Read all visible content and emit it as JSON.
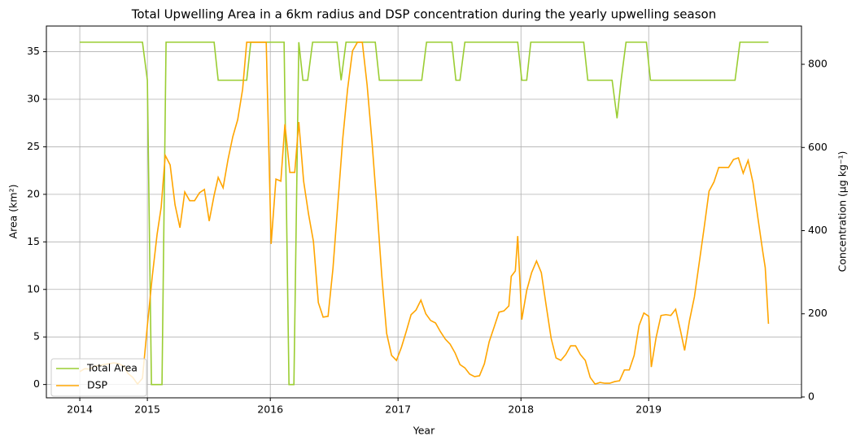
{
  "chart_data": {
    "type": "line",
    "title": "Total Upwelling Area in a 6km radius and DSP concentration during the yearly upwelling season",
    "xlabel": "Year",
    "ylabel": "Area (km²)",
    "y2label": "Concentration (µg kg⁻¹)",
    "xlim": [
      -3.2,
      69.1
    ],
    "xticks": [
      {
        "value": 0,
        "label": "2014"
      },
      {
        "value": 6.47,
        "label": "2015"
      },
      {
        "value": 18.24,
        "label": "2016"
      },
      {
        "value": 30.47,
        "label": "2017"
      },
      {
        "value": 42.24,
        "label": "2018"
      },
      {
        "value": 54.47,
        "label": "2019"
      }
    ],
    "ylim": [
      -1.4,
      37.7
    ],
    "yticks": [
      0,
      5,
      10,
      15,
      20,
      25,
      30,
      35
    ],
    "y2lim": [
      -2,
      892
    ],
    "y2ticks": [
      0,
      200,
      400,
      600,
      800
    ],
    "grid": true,
    "legend": "lower left",
    "series": [
      {
        "name": "Total Area",
        "color": "#9acd32",
        "x": [
          0,
          6.0,
          6.47,
          6.86,
          7.87,
          8.26,
          12.86,
          13.25,
          15.98,
          16.37,
          19.56,
          20.03,
          20.5,
          20.97,
          21.36,
          21.82,
          22.29,
          24.63,
          25.02,
          25.49,
          28.29,
          28.68,
          32.74,
          33.2,
          35.62,
          36.01,
          36.4,
          36.87,
          41.93,
          42.32,
          42.79,
          43.18,
          48.25,
          48.64,
          50.97,
          51.44,
          51.83,
          52.3,
          54.25,
          54.64,
          62.74,
          63.21,
          65.94
        ],
        "values": [
          36,
          36,
          32,
          0,
          0,
          36,
          36,
          32,
          32,
          36,
          36,
          0,
          0,
          36,
          32,
          32,
          36,
          36,
          32,
          36,
          36,
          32,
          32,
          36,
          36,
          32,
          32,
          36,
          36,
          32,
          32,
          36,
          36,
          32,
          32,
          28,
          32,
          36,
          36,
          32,
          32,
          36,
          36
        ]
      },
      {
        "name": "DSP",
        "color": "#ffa500",
        "axis": "y2",
        "x": [
          0,
          0.47,
          0.94,
          1.4,
          1.87,
          2.34,
          2.81,
          3.27,
          3.74,
          4.21,
          4.6,
          5.07,
          5.53,
          6.0,
          6.47,
          6.94,
          7.4,
          7.79,
          8.18,
          8.65,
          9.12,
          9.59,
          10.05,
          10.52,
          10.99,
          11.46,
          11.93,
          12.39,
          12.86,
          13.25,
          13.72,
          14.19,
          14.65,
          15.12,
          15.59,
          15.98,
          16.45,
          16.91,
          17.38,
          17.85,
          18.32,
          18.78,
          19.25,
          19.64,
          20.11,
          20.58,
          20.97,
          21.43,
          21.9,
          22.37,
          22.84,
          23.3,
          23.77,
          24.24,
          24.71,
          25.18,
          25.64,
          26.11,
          26.58,
          27.05,
          27.51,
          27.98,
          28.45,
          28.92,
          29.38,
          29.85,
          30.32,
          30.79,
          31.25,
          31.72,
          32.19,
          32.66,
          33.13,
          33.59,
          34.06,
          34.53,
          35.0,
          35.46,
          35.93,
          36.4,
          36.87,
          37.33,
          37.8,
          38.27,
          38.74,
          39.2,
          39.67,
          40.14,
          40.61,
          41.08,
          41.31,
          41.7,
          41.93,
          42.32,
          42.79,
          43.26,
          43.73,
          44.19,
          44.66,
          45.13,
          45.6,
          46.06,
          46.53,
          47.0,
          47.47,
          47.93,
          48.4,
          48.87,
          49.34,
          49.81,
          50.27,
          50.74,
          51.21,
          51.68,
          52.14,
          52.61,
          53.08,
          53.55,
          54.01,
          54.48,
          54.72,
          55.18,
          55.65,
          56.12,
          56.59,
          57.05,
          57.52,
          57.91,
          58.38,
          58.85,
          59.31,
          59.78,
          60.25,
          60.72,
          61.18,
          61.65,
          62.12,
          62.59,
          63.06,
          63.52,
          63.99,
          64.46,
          64.93,
          65.39,
          65.63,
          65.94
        ],
        "values": [
          61,
          68,
          67,
          74,
          76,
          78,
          80,
          82,
          80,
          74,
          57,
          47,
          31,
          45,
          172,
          290,
          391,
          456,
          581,
          558,
          462,
          407,
          493,
          472,
          472,
          491,
          499,
          423,
          485,
          528,
          503,
          571,
          626,
          667,
          740,
          853,
          853,
          853,
          853,
          853,
          368,
          524,
          519,
          656,
          540,
          540,
          661,
          519,
          440,
          374,
          227,
          192,
          194,
          309,
          466,
          622,
          740,
          832,
          853,
          853,
          750,
          613,
          456,
          290,
          153,
          100,
          88,
          119,
          157,
          198,
          209,
          233,
          200,
          184,
          178,
          157,
          139,
          127,
          106,
          78,
          70,
          55,
          49,
          51,
          80,
          133,
          168,
          204,
          207,
          219,
          290,
          303,
          387,
          186,
          256,
          299,
          327,
          299,
          219,
          141,
          94,
          88,
          102,
          123,
          123,
          102,
          88,
          47,
          31,
          35,
          33,
          33,
          37,
          39,
          65,
          65,
          100,
          172,
          202,
          194,
          72,
          143,
          196,
          198,
          196,
          211,
          159,
          112,
          184,
          241,
          323,
          407,
          495,
          517,
          552,
          552,
          552,
          571,
          575,
          538,
          569,
          515,
          430,
          350,
          311,
          176
        ]
      }
    ]
  }
}
